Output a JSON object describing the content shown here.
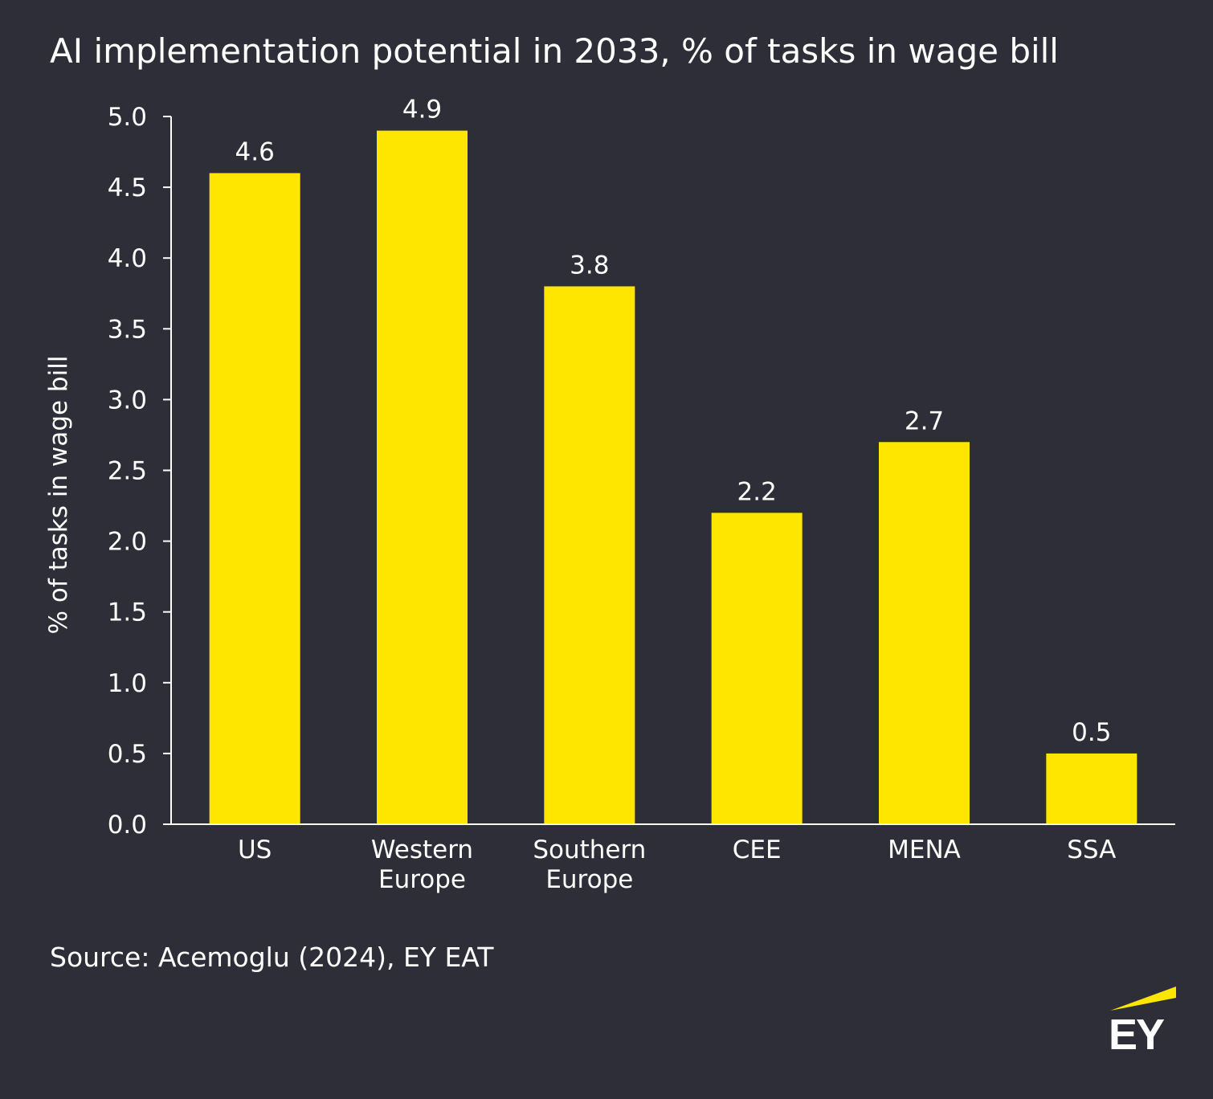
{
  "title": "AI implementation potential in 2033, % of tasks in wage bill",
  "source": "Source: Acemoglu (2024), EY EAT",
  "logo_text": "EY",
  "colors": {
    "background": "#2e2e38",
    "bar": "#ffe600",
    "text": "#ffffff",
    "axis": "#ffffff"
  },
  "chart_data": {
    "type": "bar",
    "title": "AI implementation potential in 2033, % of tasks in wage bill",
    "xlabel": "",
    "ylabel": "% of tasks in wage bill",
    "categories": [
      [
        "US"
      ],
      [
        "Western",
        "Europe"
      ],
      [
        "Southern",
        "Europe"
      ],
      [
        "CEE"
      ],
      [
        "MENA"
      ],
      [
        "SSA"
      ]
    ],
    "values": [
      4.6,
      4.9,
      3.8,
      2.2,
      2.7,
      0.5
    ],
    "value_labels": [
      "4.6",
      "4.9",
      "3.8",
      "2.2",
      "2.7",
      "0.5"
    ],
    "yticks": [
      "0.0",
      "0.5",
      "1.0",
      "1.5",
      "2.0",
      "2.5",
      "3.0",
      "3.5",
      "4.0",
      "4.5",
      "5.0"
    ],
    "ylim": [
      0,
      5
    ],
    "grid": false,
    "legend": "none"
  }
}
